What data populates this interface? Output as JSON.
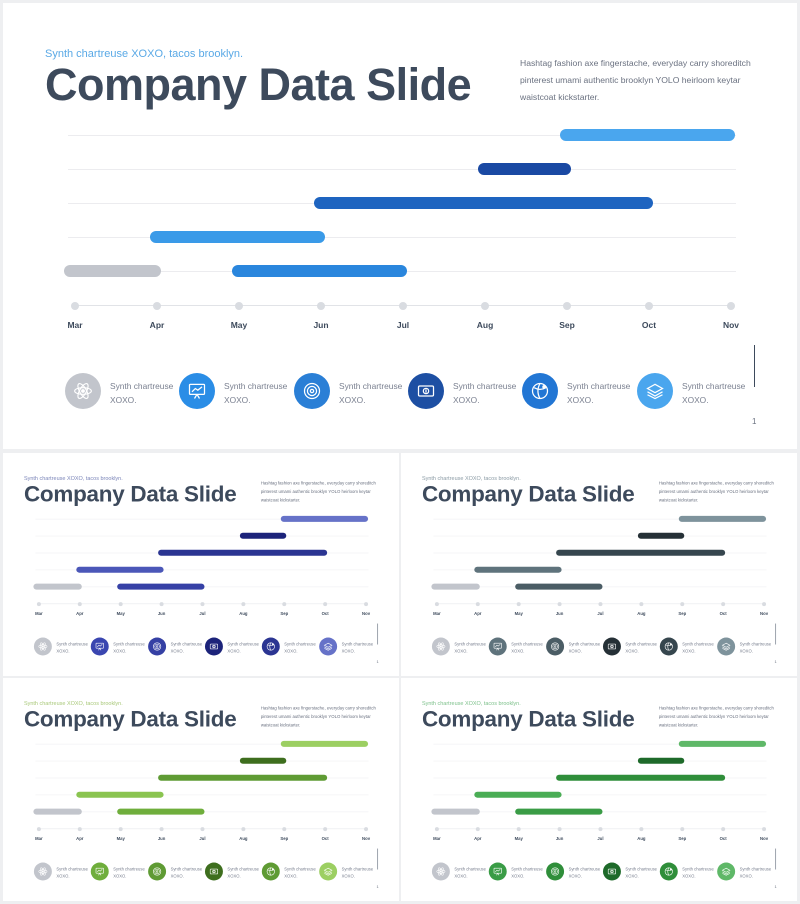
{
  "slide_content": {
    "subtitle": "Synth chartreuse XOXO, tacos brooklyn.",
    "title": "Company Data Slide",
    "description": "Hashtag fashion axe fingerstache, everyday carry shoreditch pinterest umami authentic brooklyn YOLO heirloom keytar waistcoat kickstarter.",
    "page_number": "1",
    "months": [
      "Mar",
      "Apr",
      "May",
      "Jun",
      "Jul",
      "Aug",
      "Sep",
      "Oct",
      "Nov"
    ],
    "features": [
      {
        "label": "Synth chartreuse XOXO.",
        "icon": "atom-icon"
      },
      {
        "label": "Synth chartreuse XOXO.",
        "icon": "presentation-board-icon"
      },
      {
        "label": "Synth chartreuse XOXO.",
        "icon": "target-icon"
      },
      {
        "label": "Synth chartreuse XOXO.",
        "icon": "money-bill-icon"
      },
      {
        "label": "Synth chartreuse XOXO.",
        "icon": "globe-icon"
      },
      {
        "label": "Synth chartreuse XOXO.",
        "icon": "layers-icon"
      }
    ]
  },
  "chart_data": {
    "type": "gantt",
    "x_categories": [
      "Mar",
      "Apr",
      "May",
      "Jun",
      "Jul",
      "Aug",
      "Sep",
      "Oct",
      "Nov"
    ],
    "tasks": [
      {
        "row": 1,
        "start": 6.0,
        "end": 8.05,
        "color_index": 0
      },
      {
        "row": 2,
        "start": 5.0,
        "end": 6.05,
        "color_index": 1
      },
      {
        "row": 3,
        "start": 3.0,
        "end": 7.05,
        "color_index": 2
      },
      {
        "row": 4,
        "start": 1.0,
        "end": 3.05,
        "color_index": 3
      },
      {
        "row": 5,
        "start": -0.05,
        "end": 1.05,
        "color_index": 4
      },
      {
        "row": 5,
        "start": 2.0,
        "end": 4.05,
        "color_index": 5
      }
    ]
  },
  "variants": [
    {
      "name": "blue",
      "subtitle_color": "#5aa9e6",
      "bar_colors": [
        "#4aa6ee",
        "#1a49a3",
        "#1e64c0",
        "#3a9ae8",
        "#c2c5cc",
        "#2a86dd"
      ],
      "icon_colors": [
        "#c2c5cc",
        "#2a8de6",
        "#2a7fd6",
        "#1d4fa3",
        "#2276d4",
        "#4aa6ee"
      ]
    },
    {
      "name": "indigo",
      "subtitle_color": "#7a84b8",
      "bar_colors": [
        "#6672c8",
        "#1c237a",
        "#2b3592",
        "#4b57b8",
        "#c2c5cc",
        "#3641a6"
      ],
      "icon_colors": [
        "#c2c5cc",
        "#3a46b0",
        "#3540a4",
        "#1c237a",
        "#2b3592",
        "#6672c8"
      ]
    },
    {
      "name": "slate",
      "subtitle_color": "#8a9aa4",
      "bar_colors": [
        "#7e939c",
        "#253036",
        "#36464e",
        "#5f737c",
        "#c2c5cc",
        "#4b5d65"
      ],
      "icon_colors": [
        "#c2c5cc",
        "#5f737c",
        "#4b5d65",
        "#253036",
        "#36464e",
        "#7e939c"
      ]
    },
    {
      "name": "lime",
      "subtitle_color": "#a8c878",
      "bar_colors": [
        "#9ccf62",
        "#3e6e1e",
        "#5f9b34",
        "#8ac450",
        "#c2c5cc",
        "#6fae3c"
      ],
      "icon_colors": [
        "#c2c5cc",
        "#6fae3c",
        "#5f9b34",
        "#3e6e1e",
        "#5f9b34",
        "#9ccf62"
      ]
    },
    {
      "name": "green",
      "subtitle_color": "#7cc08a",
      "bar_colors": [
        "#5fb868",
        "#1e6a2a",
        "#2f8e3a",
        "#4aad55",
        "#c2c5cc",
        "#3a9c46"
      ],
      "icon_colors": [
        "#c2c5cc",
        "#3a9c46",
        "#2f8e3a",
        "#1e6a2a",
        "#2f8e3a",
        "#5fb868"
      ]
    }
  ]
}
